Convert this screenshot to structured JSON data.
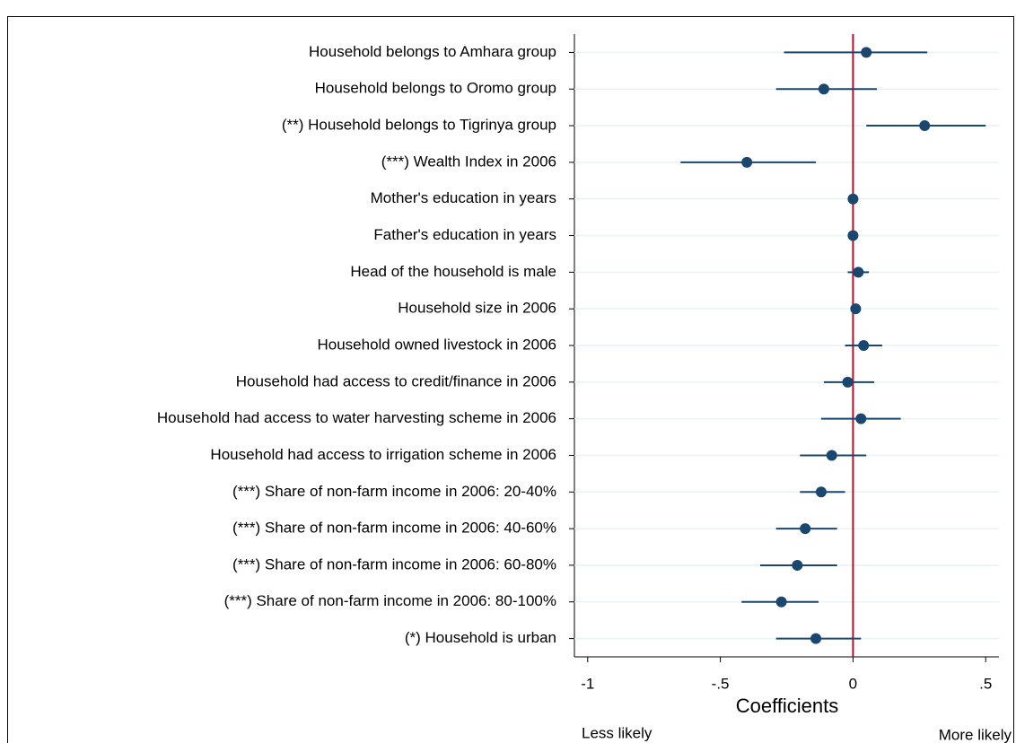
{
  "chart_data": {
    "type": "coefplot",
    "categories": [
      "Household belongs to Amhara group",
      "Household belongs to Oromo group",
      "(**) Household belongs to Tigrinya group",
      "(***) Wealth Index in 2006",
      "Mother's education in years",
      "Father's education in years",
      "Head of the household is male",
      "Household size in 2006",
      "Household owned livestock in 2006",
      "Household had access to credit/finance in 2006",
      "Household had access to water harvesting scheme in 2006",
      "Household had access to irrigation scheme in 2006",
      "(***) Share of non-farm income in 2006: 20-40%",
      "(***) Share of non-farm income in 2006: 40-60%",
      "(***) Share of non-farm income in 2006: 60-80%",
      "(***) Share of non-farm income in 2006: 80-100%",
      "(*) Household is urban"
    ],
    "values": [
      0.05,
      -0.11,
      0.27,
      -0.4,
      0.0,
      0.0,
      0.02,
      0.01,
      0.04,
      -0.02,
      0.03,
      -0.08,
      -0.12,
      -0.18,
      -0.21,
      -0.27,
      -0.14
    ],
    "lower": [
      -0.26,
      -0.29,
      0.05,
      -0.65,
      -0.01,
      -0.01,
      -0.02,
      0.0,
      -0.03,
      -0.11,
      -0.12,
      -0.2,
      -0.2,
      -0.29,
      -0.35,
      -0.42,
      -0.29
    ],
    "upper": [
      0.28,
      0.09,
      0.5,
      -0.14,
      0.01,
      0.01,
      0.06,
      0.02,
      0.11,
      0.08,
      0.18,
      0.05,
      -0.03,
      -0.06,
      -0.06,
      -0.13,
      0.03
    ],
    "color": "#1a476f",
    "reference_line": 0,
    "reference_color": "#b0102a",
    "xlim": [
      -1.05,
      0.55
    ],
    "xticks": [
      -1,
      {
        "value": -0.5,
        "label": "-.5"
      },
      0,
      {
        "value": 0.5,
        "label": ".5"
      }
    ],
    "xlabel": "Coefficients",
    "left_note": "Less likely",
    "right_note": "More likely",
    "grid": true
  }
}
